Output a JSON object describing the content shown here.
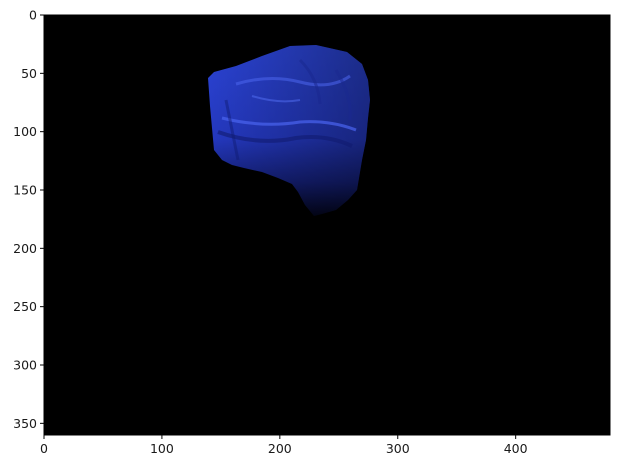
{
  "figure": {
    "background_color": "#ffffff",
    "axes": {
      "x_ticks": [
        0,
        100,
        200,
        300,
        400
      ],
      "y_ticks": [
        0,
        50,
        100,
        150,
        200,
        250,
        300,
        350
      ],
      "x_range": [
        0,
        480
      ],
      "y_range": [
        360,
        0
      ],
      "frame_color": "#000000"
    },
    "image": {
      "background_color": "#000000",
      "subject": "blue cloth bag / beanbag segmented on black background",
      "subject_colors": [
        "#2a3fc9",
        "#1d2c9a",
        "#3550e0",
        "#0f1650"
      ]
    }
  }
}
